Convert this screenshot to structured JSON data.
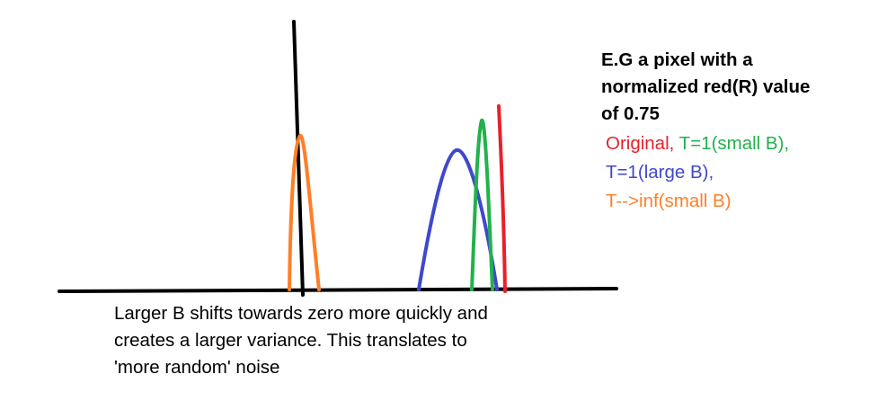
{
  "heading": {
    "line1": "E.G a pixel with a",
    "line2": "normalized red(R) value",
    "line3": "of 0.75"
  },
  "legend": {
    "original": "Original,",
    "t1_small_b": "T=1(small B),",
    "t1_large_b": "T=1(large B),",
    "tinf_small_b": "T-->inf(small B)"
  },
  "caption": {
    "line1": "Larger B shifts towards zero more quickly and",
    "line2": "creates a larger variance. This translates to",
    "line3": "'more random' noise"
  },
  "colors": {
    "axis": "#000000",
    "original": "#e8202a",
    "t1_small_b": "#22b14c",
    "t1_large_b": "#3f48cc",
    "tinf_small_b": "#ff7f27"
  }
}
